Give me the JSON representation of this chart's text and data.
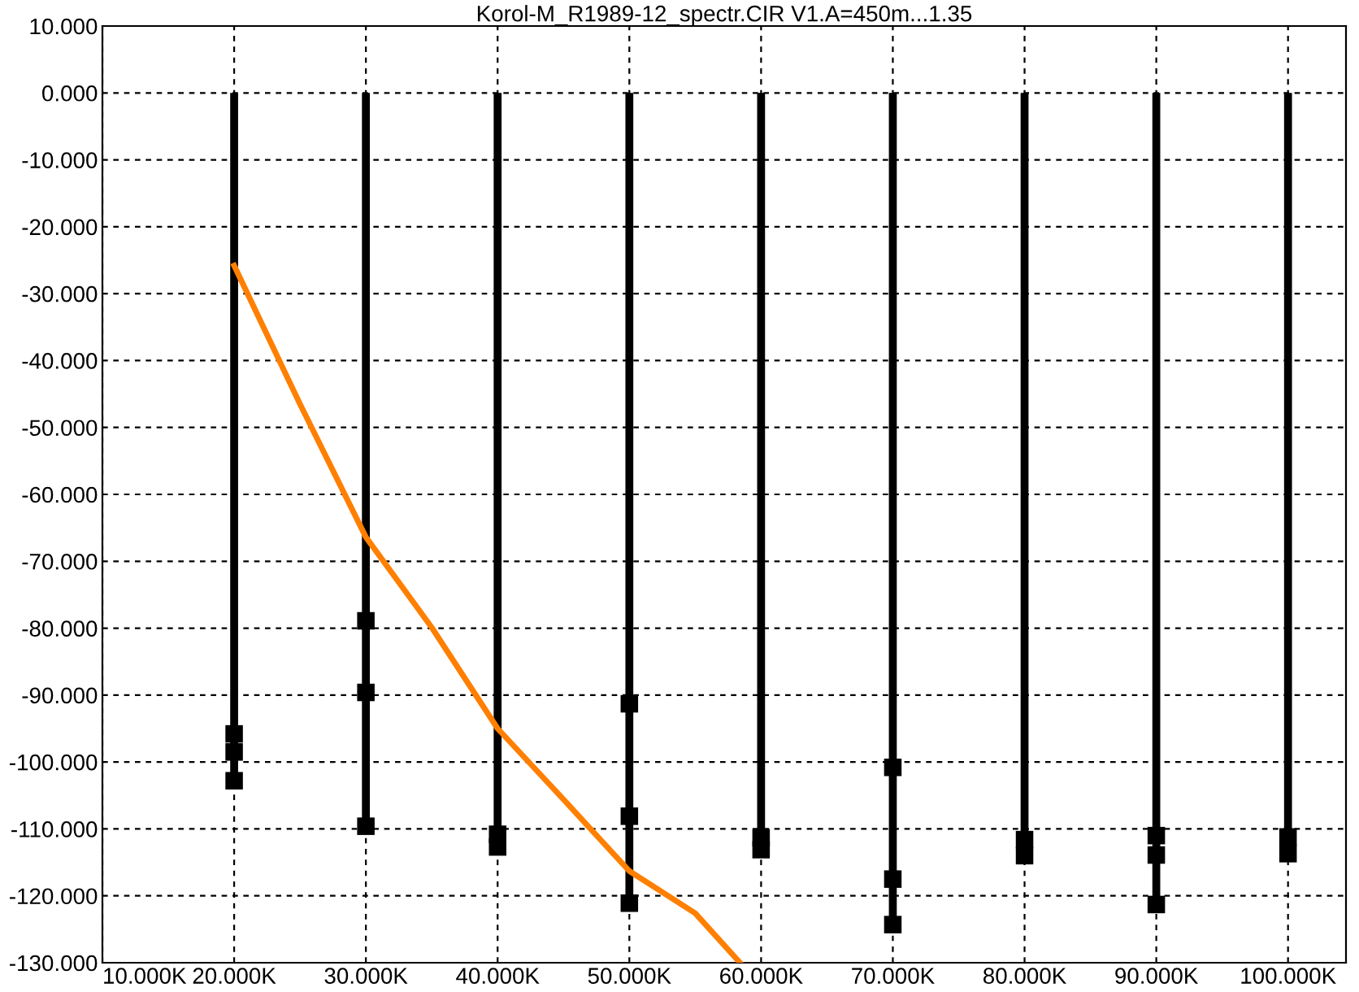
{
  "chart_data": {
    "type": "scatter",
    "title": "Korol-M_R1989-12_spectr.CIR V1.A=450m...1.35",
    "xlim": [
      10,
      104.4
    ],
    "ylim": [
      -130,
      10
    ],
    "xticks": [
      {
        "value": 10,
        "label": "10.000K"
      },
      {
        "value": 20,
        "label": "20.000K"
      },
      {
        "value": 30,
        "label": "30.000K"
      },
      {
        "value": 40,
        "label": "40.000K"
      },
      {
        "value": 50,
        "label": "50.000K"
      },
      {
        "value": 60,
        "label": "60.000K"
      },
      {
        "value": 70,
        "label": "70.000K"
      },
      {
        "value": 80,
        "label": "80.000K"
      },
      {
        "value": 90,
        "label": "90.000K"
      },
      {
        "value": 100,
        "label": "100.000K"
      }
    ],
    "yticks": [
      {
        "value": 10,
        "label": "10.000"
      },
      {
        "value": 0,
        "label": "0.000"
      },
      {
        "value": -10,
        "label": "-10.000"
      },
      {
        "value": -20,
        "label": "-20.000"
      },
      {
        "value": -30,
        "label": "-30.000"
      },
      {
        "value": -40,
        "label": "-40.000"
      },
      {
        "value": -50,
        "label": "-50.000"
      },
      {
        "value": -60,
        "label": "-60.000"
      },
      {
        "value": -70,
        "label": "-70.000"
      },
      {
        "value": -80,
        "label": "-80.000"
      },
      {
        "value": -90,
        "label": "-90.000"
      },
      {
        "value": -100,
        "label": "-100.000"
      },
      {
        "value": -110,
        "label": "-110.000"
      },
      {
        "value": -120,
        "label": "-120.000"
      },
      {
        "value": -130,
        "label": "-130.000"
      }
    ],
    "grid": true,
    "marker": "square",
    "series": [
      {
        "type": "lollipop",
        "color": "#000000",
        "x": [
          20,
          30,
          40,
          50,
          60,
          70,
          80,
          90,
          100
        ],
        "values": [
          -102.8,
          -109.6,
          -112.7,
          -121.1,
          -113.1,
          -124.3,
          -114.0,
          -121.3,
          -113.7
        ]
      },
      {
        "color": "#000000",
        "x": [
          20,
          20,
          30,
          30,
          40,
          50,
          50,
          60,
          70,
          70,
          80,
          90,
          90,
          100
        ],
        "values": [
          -95.8,
          -98.5,
          -78.9,
          -89.6,
          -110.8,
          -91.3,
          -108.1,
          -111.3,
          -100.8,
          -117.5,
          -111.6,
          -111.0,
          -113.9,
          -111.2
        ]
      },
      {
        "type": "line",
        "color": "#ff7f00",
        "marker": "none",
        "x": [
          20,
          25,
          30,
          35,
          40,
          45,
          50,
          55,
          58.4
        ],
        "values": [
          -25.8,
          -46.5,
          -66.4,
          -79.9,
          -95.0,
          -105.6,
          -116.3,
          -122.6,
          -130
        ]
      }
    ]
  }
}
